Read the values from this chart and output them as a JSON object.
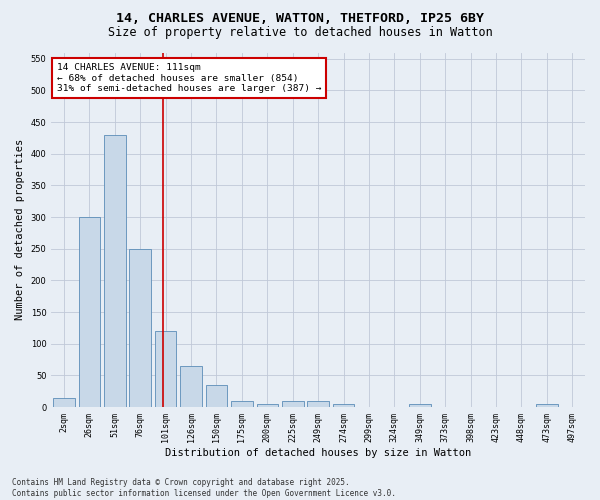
{
  "title_line1": "14, CHARLES AVENUE, WATTON, THETFORD, IP25 6BY",
  "title_line2": "Size of property relative to detached houses in Watton",
  "xlabel": "Distribution of detached houses by size in Watton",
  "ylabel": "Number of detached properties",
  "categories": [
    "2sqm",
    "26sqm",
    "51sqm",
    "76sqm",
    "101sqm",
    "126sqm",
    "150sqm",
    "175sqm",
    "200sqm",
    "225sqm",
    "249sqm",
    "274sqm",
    "299sqm",
    "324sqm",
    "349sqm",
    "373sqm",
    "398sqm",
    "423sqm",
    "448sqm",
    "473sqm",
    "497sqm"
  ],
  "values": [
    15,
    300,
    430,
    250,
    120,
    65,
    35,
    10,
    5,
    10,
    10,
    5,
    0,
    0,
    5,
    0,
    0,
    0,
    0,
    5,
    0
  ],
  "bar_color": "#c8d8e8",
  "bar_edge_color": "#5b8db8",
  "grid_color": "#c0c8d8",
  "background_color": "#e8eef5",
  "annotation_box_color": "#ffffff",
  "annotation_border_color": "#cc0000",
  "property_line_color": "#cc0000",
  "annotation_title": "14 CHARLES AVENUE: 111sqm",
  "annotation_line1": "← 68% of detached houses are smaller (854)",
  "annotation_line2": "31% of semi-detached houses are larger (387) →",
  "ylim": [
    0,
    560
  ],
  "yticks": [
    0,
    50,
    100,
    150,
    200,
    250,
    300,
    350,
    400,
    450,
    500,
    550
  ],
  "footnote1": "Contains HM Land Registry data © Crown copyright and database right 2025.",
  "footnote2": "Contains public sector information licensed under the Open Government Licence v3.0.",
  "title_fontsize": 9.5,
  "subtitle_fontsize": 8.5,
  "tick_fontsize": 6,
  "label_fontsize": 7.5,
  "annotation_fontsize": 6.8,
  "footnote_fontsize": 5.5
}
